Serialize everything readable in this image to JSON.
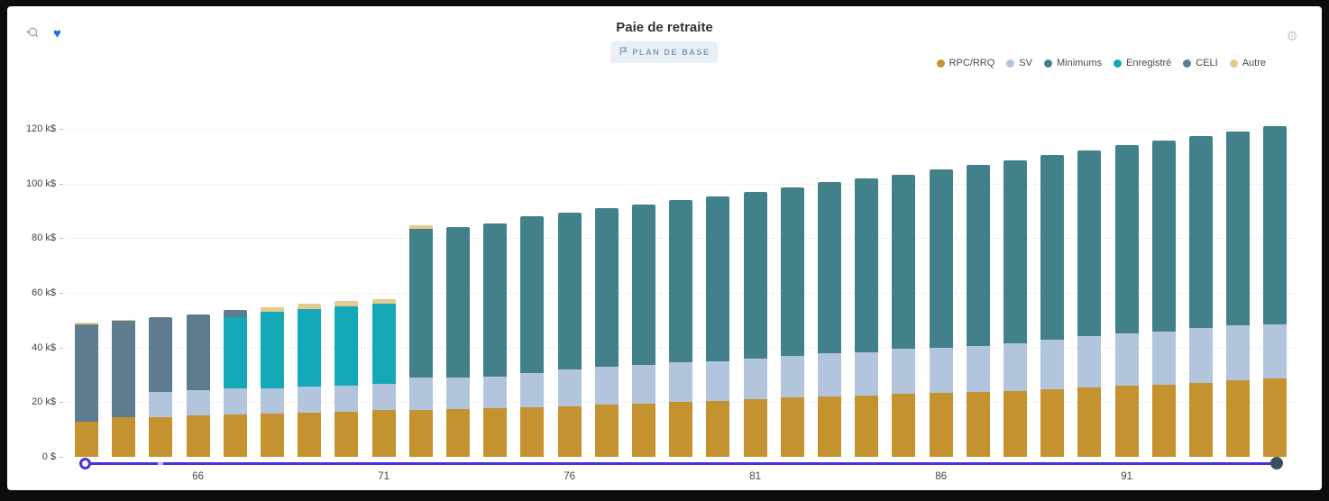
{
  "header": {
    "title": "Paie de retraite",
    "badge_label": "PLAN DE BASE",
    "icons": {
      "zoom_reset": "zoom-reset-icon",
      "heart": "heart-icon",
      "camera": "camera-icon",
      "badge_flag": "flag-icon"
    },
    "heart_glyph": "♥",
    "camera_glyph": "⚙"
  },
  "colors": {
    "heart": "#1c6fe4",
    "badge_bg": "#e8eff6",
    "badge_text": "#829bb0",
    "slider_line": "#4b2ee0",
    "slider_tick": "#c3b8f0",
    "slider_handle_right": "#3c4e5c",
    "icon_gray": "#9aa5ad"
  },
  "legend": {
    "items": [
      {
        "label": "RPC/RRQ",
        "color": "#c4922e"
      },
      {
        "label": "SV",
        "color": "#b2c5dc"
      },
      {
        "label": "Minimums",
        "color": "#43818a"
      },
      {
        "label": "Enregistré",
        "color": "#14a8b8"
      },
      {
        "label": "CELI",
        "color": "#5e7c8f"
      },
      {
        "label": "Autre",
        "color": "#e4ca8c"
      }
    ]
  },
  "chart_data": {
    "type": "bar",
    "stacked": true,
    "title": "Paie de retraite",
    "xlabel": "",
    "ylabel": "",
    "unit": "k$",
    "ylim": [
      0,
      122
    ],
    "grid": true,
    "legend_position": "top-right",
    "x": [
      63,
      64,
      65,
      66,
      67,
      68,
      69,
      70,
      71,
      72,
      73,
      74,
      75,
      76,
      77,
      78,
      79,
      80,
      81,
      82,
      83,
      84,
      85,
      86,
      87,
      88,
      89,
      90,
      91,
      92,
      93,
      94,
      95
    ],
    "x_tick_values": [
      66,
      71,
      76,
      81,
      86,
      91
    ],
    "y_ticks": [
      {
        "value": 0,
        "label": "0 $"
      },
      {
        "value": 20,
        "label": "20 k$"
      },
      {
        "value": 40,
        "label": "40 k$"
      },
      {
        "value": 60,
        "label": "60 k$"
      },
      {
        "value": 80,
        "label": "80 k$"
      },
      {
        "value": 100,
        "label": "100 k$"
      },
      {
        "value": 120,
        "label": "120 k$"
      }
    ],
    "series": [
      {
        "name": "RPC/RRQ",
        "color": "#c4922e",
        "values": [
          13.0,
          14.5,
          14.6,
          15.1,
          15.4,
          15.8,
          16.2,
          16.6,
          17.0,
          17.3,
          17.5,
          17.7,
          18.1,
          18.6,
          19.0,
          19.4,
          20.0,
          20.6,
          21.0,
          21.7,
          22.1,
          22.5,
          23.0,
          23.3,
          23.9,
          24.1,
          24.7,
          25.4,
          26.1,
          26.5,
          27.2,
          27.9,
          28.7
        ]
      },
      {
        "name": "SV",
        "color": "#b2c5dc",
        "values": [
          0,
          0,
          9.0,
          9.3,
          9.5,
          9.4,
          9.4,
          9.5,
          9.6,
          11.7,
          11.5,
          11.7,
          12.6,
          13.4,
          13.9,
          14.2,
          14.5,
          14.5,
          14.9,
          15.3,
          15.7,
          15.9,
          16.7,
          16.7,
          16.6,
          17.3,
          18.3,
          18.7,
          19.0,
          19.5,
          19.9,
          20.1,
          19.7
        ]
      },
      {
        "name": "Minimums",
        "color": "#43818a",
        "values": [
          0,
          0,
          0,
          0,
          0,
          0,
          0,
          0,
          0,
          54.3,
          55.2,
          56.1,
          57.5,
          57.3,
          58.1,
          58.8,
          59.4,
          60.3,
          61.1,
          61.6,
          62.7,
          63.5,
          63.6,
          65.2,
          66.3,
          67.1,
          67.4,
          67.9,
          68.9,
          69.6,
          70.4,
          71.2,
          72.7
        ]
      },
      {
        "name": "Enregistré",
        "color": "#14a8b8",
        "values": [
          0,
          0,
          0,
          0,
          26.1,
          28.0,
          28.6,
          29.0,
          29.4,
          0,
          0,
          0,
          0,
          0,
          0,
          0,
          0,
          0,
          0,
          0,
          0,
          0,
          0,
          0,
          0,
          0,
          0,
          0,
          0,
          0,
          0,
          0,
          0
        ]
      },
      {
        "name": "CELI",
        "color": "#5e7c8f",
        "values": [
          35.5,
          35.2,
          27.5,
          27.7,
          2.7,
          0,
          0,
          0,
          0,
          0,
          0,
          0,
          0,
          0,
          0,
          0,
          0,
          0,
          0,
          0,
          0,
          0,
          0,
          0,
          0,
          0,
          0,
          0,
          0,
          0,
          0,
          0,
          0
        ]
      },
      {
        "name": "Autre",
        "color": "#e4ca8c",
        "values": [
          0.5,
          0.3,
          0,
          0,
          0,
          1.6,
          1.9,
          1.9,
          1.6,
          1.6,
          0,
          0,
          0,
          0,
          0,
          0,
          0,
          0,
          0,
          0,
          0,
          0,
          0,
          0,
          0,
          0,
          0,
          0,
          0,
          0,
          0,
          0,
          0
        ]
      }
    ]
  },
  "slider": {
    "range_start_age": 63,
    "range_end_age": 95
  }
}
